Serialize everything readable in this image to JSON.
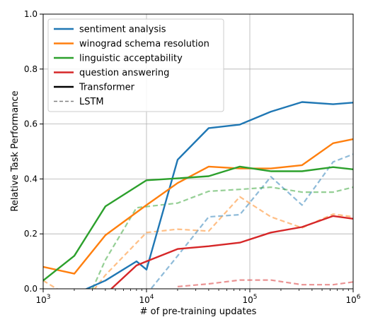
{
  "chart_data": {
    "type": "line",
    "xlabel": "# of pre-training updates",
    "ylabel": "Relative Task Performance",
    "xscale": "log",
    "xlim": [
      1000,
      1000000
    ],
    "ylim": [
      0.0,
      1.0
    ],
    "x_ticks": [
      {
        "value": 1000,
        "base": "10",
        "exp": "3"
      },
      {
        "value": 10000,
        "base": "10",
        "exp": "4"
      },
      {
        "value": 100000,
        "base": "10",
        "exp": "5"
      },
      {
        "value": 1000000,
        "base": "10",
        "exp": "6"
      }
    ],
    "y_ticks": [
      {
        "value": 0.0,
        "label": "0.0"
      },
      {
        "value": 0.2,
        "label": "0.2"
      },
      {
        "value": 0.4,
        "label": "0.4"
      },
      {
        "value": 0.6,
        "label": "0.6"
      },
      {
        "value": 0.8,
        "label": "0.8"
      },
      {
        "value": 1.0,
        "label": "1.0"
      }
    ],
    "grid": true,
    "legend_position": "top-left",
    "legend": [
      {
        "label": "sentiment analysis",
        "color": "#1f77b4",
        "style": "solid"
      },
      {
        "label": "winograd schema resolution",
        "color": "#ff7f0e",
        "style": "solid"
      },
      {
        "label": "linguistic acceptability",
        "color": "#2ca02c",
        "style": "solid"
      },
      {
        "label": "question answering",
        "color": "#d62728",
        "style": "solid"
      },
      {
        "label": "Transformer",
        "color": "#000000",
        "style": "solid"
      },
      {
        "label": "LSTM",
        "color": "#808080",
        "style": "dashed"
      }
    ],
    "series": [
      {
        "task": "sentiment analysis",
        "model": "Transformer",
        "color": "#1f77b4",
        "dashed": false,
        "points": [
          [
            2000,
            -0.02
          ],
          [
            4000,
            0.03
          ],
          [
            8000,
            0.1
          ],
          [
            10000,
            0.07
          ],
          [
            20000,
            0.47
          ],
          [
            40000,
            0.585
          ],
          [
            80000,
            0.598
          ],
          [
            160000,
            0.645
          ],
          [
            320000,
            0.68
          ],
          [
            640000,
            0.672
          ],
          [
            1000000,
            0.678
          ]
        ]
      },
      {
        "task": "winograd schema resolution",
        "model": "Transformer",
        "color": "#ff7f0e",
        "dashed": false,
        "points": [
          [
            1000,
            0.08
          ],
          [
            2000,
            0.055
          ],
          [
            4000,
            0.195
          ],
          [
            10000,
            0.305
          ],
          [
            20000,
            0.385
          ],
          [
            40000,
            0.445
          ],
          [
            80000,
            0.438
          ],
          [
            160000,
            0.438
          ],
          [
            320000,
            0.45
          ],
          [
            640000,
            0.53
          ],
          [
            1000000,
            0.545
          ]
        ]
      },
      {
        "task": "linguistic acceptability",
        "model": "Transformer",
        "color": "#2ca02c",
        "dashed": false,
        "points": [
          [
            1000,
            0.03
          ],
          [
            2000,
            0.12
          ],
          [
            4000,
            0.3
          ],
          [
            10000,
            0.395
          ],
          [
            20000,
            0.402
          ],
          [
            40000,
            0.41
          ],
          [
            80000,
            0.445
          ],
          [
            160000,
            0.428
          ],
          [
            320000,
            0.428
          ],
          [
            640000,
            0.443
          ],
          [
            1000000,
            0.435
          ]
        ]
      },
      {
        "task": "question answering",
        "model": "Transformer",
        "color": "#d62728",
        "dashed": false,
        "points": [
          [
            4000,
            -0.02
          ],
          [
            8000,
            0.085
          ],
          [
            10000,
            0.1
          ],
          [
            20000,
            0.145
          ],
          [
            40000,
            0.155
          ],
          [
            80000,
            0.168
          ],
          [
            160000,
            0.205
          ],
          [
            320000,
            0.225
          ],
          [
            640000,
            0.265
          ],
          [
            1000000,
            0.255
          ]
        ]
      },
      {
        "task": "sentiment analysis",
        "model": "LSTM",
        "color": "#1f77b4",
        "dashed": true,
        "points": [
          [
            10000,
            -0.02
          ],
          [
            20000,
            0.12
          ],
          [
            40000,
            0.262
          ],
          [
            80000,
            0.27
          ],
          [
            160000,
            0.408
          ],
          [
            320000,
            0.305
          ],
          [
            640000,
            0.462
          ],
          [
            1000000,
            0.49
          ]
        ]
      },
      {
        "task": "winograd schema resolution",
        "model": "LSTM",
        "color": "#ff7f0e",
        "dashed": true,
        "points": [
          [
            1000,
            0.03
          ],
          [
            1500,
            -0.01
          ],
          [
            3000,
            -0.01
          ],
          [
            4000,
            0.05
          ],
          [
            10000,
            0.205
          ],
          [
            20000,
            0.217
          ],
          [
            40000,
            0.21
          ],
          [
            80000,
            0.335
          ],
          [
            160000,
            0.262
          ],
          [
            320000,
            0.222
          ],
          [
            640000,
            0.272
          ],
          [
            1000000,
            0.262
          ]
        ]
      },
      {
        "task": "linguistic acceptability",
        "model": "LSTM",
        "color": "#2ca02c",
        "dashed": true,
        "points": [
          [
            3000,
            0.0
          ],
          [
            4000,
            0.105
          ],
          [
            8000,
            0.295
          ],
          [
            20000,
            0.312
          ],
          [
            40000,
            0.355
          ],
          [
            80000,
            0.362
          ],
          [
            160000,
            0.37
          ],
          [
            320000,
            0.352
          ],
          [
            640000,
            0.352
          ],
          [
            1000000,
            0.37
          ]
        ]
      },
      {
        "task": "question answering",
        "model": "LSTM",
        "color": "#d62728",
        "dashed": true,
        "points": [
          [
            20000,
            0.008
          ],
          [
            40000,
            0.018
          ],
          [
            80000,
            0.032
          ],
          [
            160000,
            0.032
          ],
          [
            320000,
            0.015
          ],
          [
            640000,
            0.015
          ],
          [
            1000000,
            0.025
          ]
        ]
      }
    ]
  }
}
